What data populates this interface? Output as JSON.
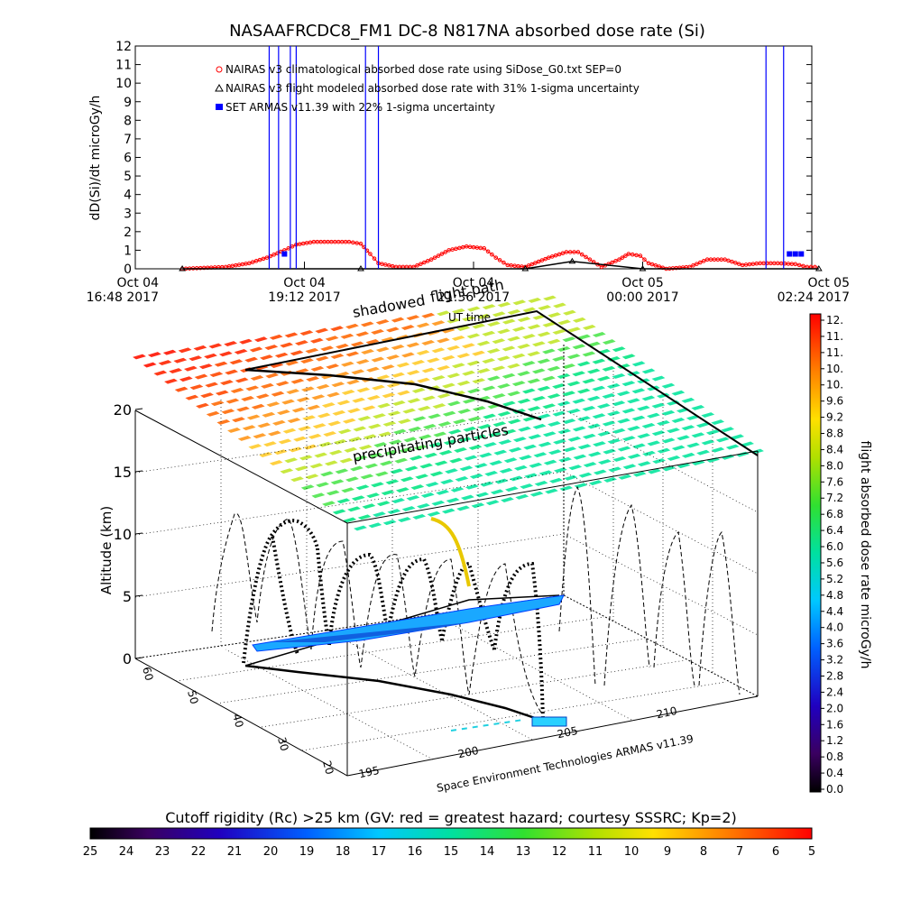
{
  "top_chart": {
    "title": "NASAAFRCDC8_FM1 DC-8    N817NA absorbed dose rate (Si)",
    "ylabel": "dD(Si)/dt microGy/h",
    "legend": [
      {
        "symbol": "red-circle",
        "text": "NAIRAS v3 climatological absorbed dose rate using SiDose_G0.txt SEP=0"
      },
      {
        "symbol": "black-triangle",
        "text": "NAIRAS v3 flight modeled absorbed dose rate with 31% 1-sigma uncertainty"
      },
      {
        "symbol": "blue-square",
        "text": "SET ARMAS v11.39 with 22% 1-sigma uncertainty"
      }
    ],
    "xticks": [
      {
        "line1": "Oct 04",
        "line2": "16:48 2017"
      },
      {
        "line1": "Oct 04",
        "line2": "19:12 2017"
      },
      {
        "line1": "Oct 04",
        "line2": "21:36 2017"
      },
      {
        "line1": "Oct 05",
        "line2": "00:00 2017"
      },
      {
        "line1": "Oct 05",
        "line2": "02:24 2017"
      }
    ],
    "yticks": [
      "0",
      "1",
      "2",
      "3",
      "4",
      "5",
      "6",
      "7",
      "8",
      "9",
      "10",
      "11",
      "12"
    ]
  },
  "chart_data": [
    {
      "type": "line",
      "title": "NASAAFRCDC8_FM1 DC-8    N817NA absorbed dose rate (Si)",
      "ylabel": "dD(Si)/dt microGy/h",
      "xlabel": "",
      "x_range": [
        "2017-10-04 16:48",
        "2017-10-05 02:24"
      ],
      "ylim": [
        0,
        12
      ],
      "series": [
        {
          "name": "NAIRAS v3 climatological absorbed dose rate using SiDose_G0.txt SEP=0",
          "color": "#ff0000",
          "marker": "circle",
          "points": [
            [
              "2017-10-04 17:28",
              0.0
            ],
            [
              "2017-10-04 18:05",
              0.1
            ],
            [
              "2017-10-04 18:25",
              0.3
            ],
            [
              "2017-10-04 18:40",
              0.6
            ],
            [
              "2017-10-04 18:55",
              1.0
            ],
            [
              "2017-10-04 19:05",
              1.3
            ],
            [
              "2017-10-04 19:20",
              1.45
            ],
            [
              "2017-10-04 19:50",
              1.45
            ],
            [
              "2017-10-04 20:00",
              1.35
            ],
            [
              "2017-10-04 20:08",
              0.8
            ],
            [
              "2017-10-04 20:15",
              0.3
            ],
            [
              "2017-10-04 20:30",
              0.1
            ],
            [
              "2017-10-04 20:45",
              0.1
            ],
            [
              "2017-10-04 21:00",
              0.5
            ],
            [
              "2017-10-04 21:15",
              1.0
            ],
            [
              "2017-10-04 21:30",
              1.2
            ],
            [
              "2017-10-04 21:45",
              1.1
            ],
            [
              "2017-10-04 21:55",
              0.6
            ],
            [
              "2017-10-04 22:05",
              0.2
            ],
            [
              "2017-10-04 22:20",
              0.1
            ],
            [
              "2017-10-04 22:40",
              0.6
            ],
            [
              "2017-10-04 22:55",
              0.9
            ],
            [
              "2017-10-04 23:05",
              0.9
            ],
            [
              "2017-10-04 23:15",
              0.5
            ],
            [
              "2017-10-04 23:25",
              0.1
            ],
            [
              "2017-10-04 23:40",
              0.5
            ],
            [
              "2017-10-04 23:48",
              0.8
            ],
            [
              "2017-10-04 23:58",
              0.7
            ],
            [
              "2017-10-05 00:05",
              0.3
            ],
            [
              "2017-10-05 00:20",
              0.0
            ],
            [
              "2017-10-05 00:40",
              0.1
            ],
            [
              "2017-10-05 00:55",
              0.5
            ],
            [
              "2017-10-05 01:10",
              0.5
            ],
            [
              "2017-10-05 01:25",
              0.2
            ],
            [
              "2017-10-05 01:40",
              0.3
            ],
            [
              "2017-10-05 01:55",
              0.3
            ],
            [
              "2017-10-05 02:10",
              0.25
            ],
            [
              "2017-10-05 02:20",
              0.1
            ],
            [
              "2017-10-05 02:30",
              0.1
            ]
          ]
        },
        {
          "name": "NAIRAS v3 flight modeled absorbed dose rate with 31% 1-sigma uncertainty",
          "color": "#000000",
          "marker": "triangle",
          "points": [
            [
              "2017-10-04 17:28",
              0.0
            ],
            [
              "2017-10-04 20:00",
              0.0
            ],
            [
              "2017-10-04 22:20",
              0.0
            ],
            [
              "2017-10-04 23:00",
              0.4
            ],
            [
              "2017-10-05 00:00",
              0.0
            ],
            [
              "2017-10-05 02:30",
              0.0
            ]
          ]
        },
        {
          "name": "SET ARMAS v11.39 with 22% 1-sigma uncertainty",
          "color": "#0000ff",
          "marker": "square",
          "points": [
            [
              "2017-10-04 18:42",
              12
            ],
            [
              "2017-10-04 18:50",
              12
            ],
            [
              "2017-10-04 18:55",
              0.8
            ],
            [
              "2017-10-04 19:00",
              12
            ],
            [
              "2017-10-04 19:05",
              12
            ],
            [
              "2017-10-04 20:04",
              12
            ],
            [
              "2017-10-04 20:15",
              12
            ],
            [
              "2017-10-05 01:45",
              12
            ],
            [
              "2017-10-05 02:00",
              12
            ],
            [
              "2017-10-05 02:05",
              0.8
            ],
            [
              "2017-10-05 02:10",
              0.8
            ],
            [
              "2017-10-05 02:15",
              0.8
            ]
          ]
        }
      ]
    }
  ],
  "globe_chart": {
    "zlabel": "Altitude (km)",
    "zticks": [
      "0",
      "5",
      "10",
      "15",
      "20"
    ],
    "lat_ticks": [
      "60",
      "50",
      "40",
      "30",
      "20"
    ],
    "lon_ticks": [
      "195",
      "200",
      "205",
      "210"
    ],
    "annotation_shadowed": "shadowed",
    "annotation_path": "flight path",
    "annotation_ut": "UT time",
    "annotation_precip": "precipitating particles",
    "credit": "Space Environment Technologies ARMAS v11.39"
  },
  "right_colorbar": {
    "label": "flight absorbed dose rate microGy/h",
    "ticks": [
      "12.",
      "11.",
      "11.",
      "10.",
      "10.",
      "9.6",
      "9.2",
      "8.8",
      "8.4",
      "8.0",
      "7.6",
      "7.2",
      "6.8",
      "6.4",
      "6.0",
      "5.6",
      "5.2",
      "4.8",
      "4.4",
      "4.0",
      "3.6",
      "3.2",
      "2.8",
      "2.4",
      "2.0",
      "1.6",
      "1.2",
      "0.8",
      "0.4",
      "0.0"
    ]
  },
  "bottom_colorbar": {
    "label": "Cutoff rigidity (Rc) >25 km (GV: red = greatest hazard; courtesy SSSRC; Kp=2)",
    "ticks": [
      "25",
      "24",
      "23",
      "22",
      "21",
      "20",
      "19",
      "18",
      "17",
      "16",
      "15",
      "14",
      "13",
      "12",
      "11",
      "10",
      "9",
      "8",
      "7",
      "6",
      "5"
    ]
  }
}
